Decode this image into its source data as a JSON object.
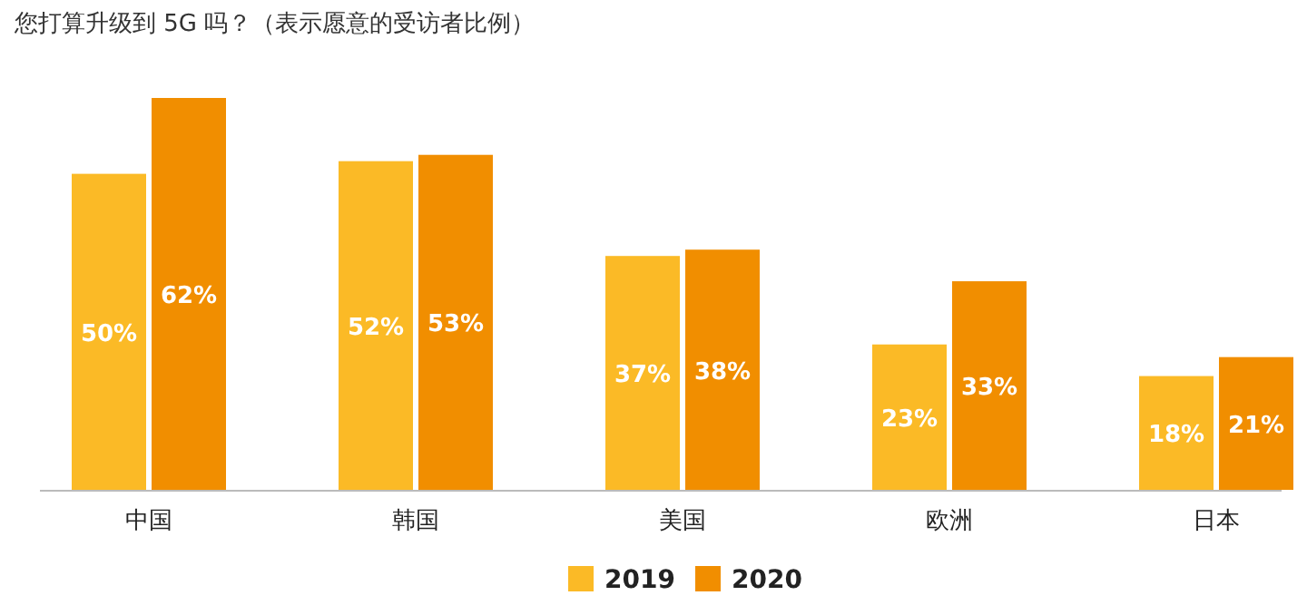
{
  "chart_data": {
    "type": "bar",
    "title": "您打算升级到 5G 吗？（表示愿意的受访者比例）",
    "categories": [
      "中国",
      "韩国",
      "美国",
      "欧洲",
      "日本"
    ],
    "series": [
      {
        "name": "2019",
        "color": "#fbba26",
        "values": [
          50,
          52,
          37,
          23,
          18
        ],
        "value_labels": [
          "50%",
          "52%",
          "37%",
          "23%",
          "18%"
        ]
      },
      {
        "name": "2020",
        "color": "#f18e00",
        "values": [
          62,
          53,
          38,
          33,
          21
        ],
        "value_labels": [
          "62%",
          "53%",
          "38%",
          "33%",
          "21%"
        ]
      }
    ],
    "legend": "bottom"
  }
}
